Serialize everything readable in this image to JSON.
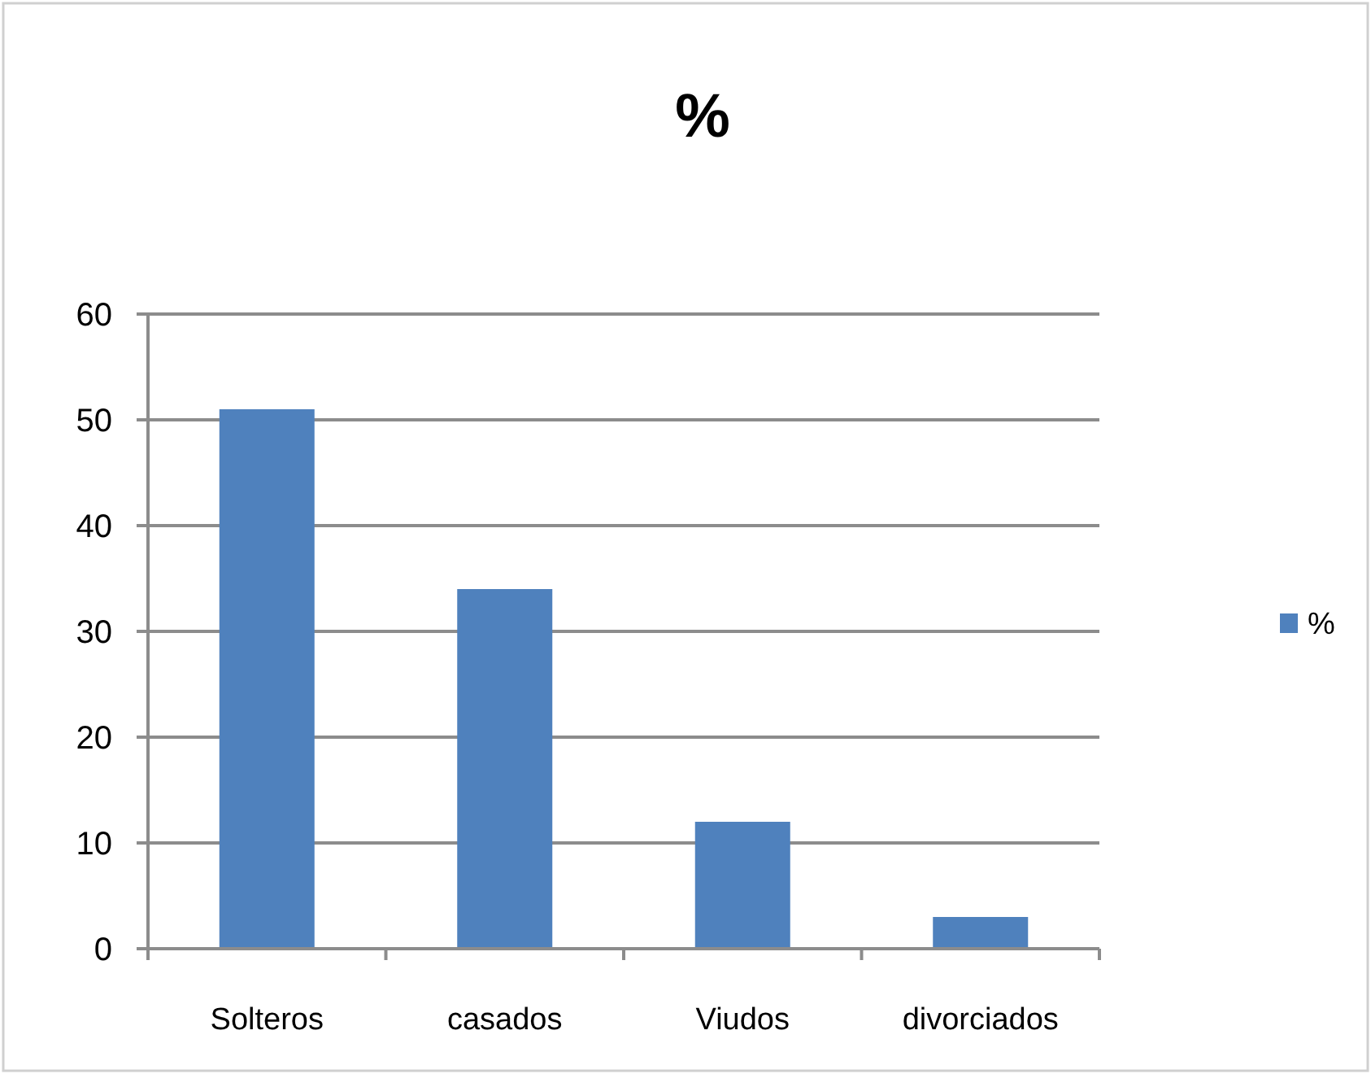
{
  "chart_data": {
    "type": "bar",
    "title": "%",
    "categories": [
      "Solteros",
      "casados",
      "Viudos",
      "divorciados"
    ],
    "series": [
      {
        "name": "%",
        "color": "#4f81bd",
        "values": [
          51,
          34,
          12,
          3
        ]
      }
    ],
    "ylim": [
      0,
      60
    ],
    "yticks": [
      0,
      10,
      20,
      30,
      40,
      50,
      60
    ],
    "grid": "y",
    "legend": "right"
  }
}
